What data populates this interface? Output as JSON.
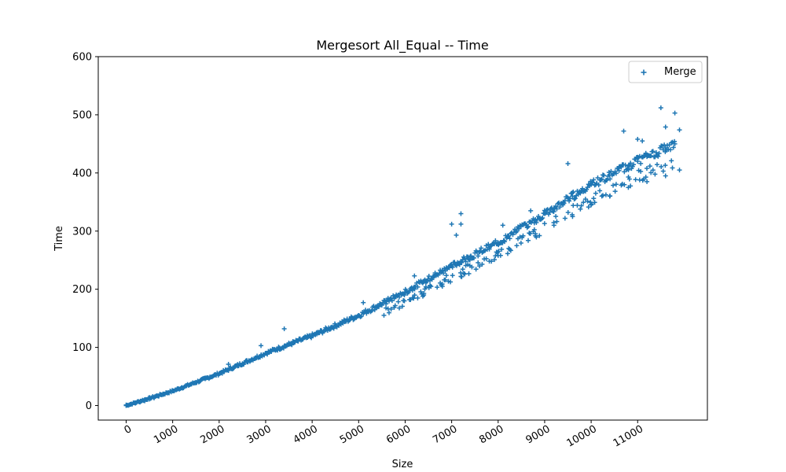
{
  "chart_data": {
    "type": "scatter",
    "title": "Mergesort All_Equal -- Time",
    "xlabel": "Size",
    "ylabel": "Time",
    "xlim": [
      -600,
      12500
    ],
    "ylim": [
      -25,
      600
    ],
    "xticks": [
      0,
      1000,
      2000,
      3000,
      4000,
      5000,
      6000,
      7000,
      8000,
      9000,
      10000,
      11000
    ],
    "yticks": [
      0,
      100,
      200,
      300,
      400,
      500,
      600
    ],
    "x_tick_rotation_deg": 30,
    "grid": false,
    "legend_position": "top-right",
    "series": [
      {
        "name": "Merge",
        "marker": "plus",
        "color": "#1f77b4",
        "trend": {
          "x": [
            0,
            1000,
            2000,
            3000,
            4000,
            5000,
            6000,
            7000,
            8000,
            9000,
            10000,
            11000,
            11800
          ],
          "y": [
            0,
            25,
            55,
            90,
            120,
            155,
            195,
            240,
            280,
            330,
            380,
            420,
            450
          ]
        },
        "points": [
          [
            0,
            1
          ],
          [
            100,
            2
          ],
          [
            200,
            4
          ],
          [
            300,
            6
          ],
          [
            400,
            8
          ],
          [
            500,
            11
          ],
          [
            600,
            13
          ],
          [
            700,
            16
          ],
          [
            800,
            19
          ],
          [
            900,
            22
          ],
          [
            1000,
            25
          ],
          [
            1100,
            28
          ],
          [
            1200,
            31
          ],
          [
            1300,
            34
          ],
          [
            1400,
            37
          ],
          [
            1500,
            40
          ],
          [
            1600,
            43
          ],
          [
            1700,
            46
          ],
          [
            1800,
            49
          ],
          [
            1900,
            52
          ],
          [
            2000,
            55
          ],
          [
            2100,
            58
          ],
          [
            2200,
            61
          ],
          [
            2300,
            65
          ],
          [
            2400,
            68
          ],
          [
            2500,
            72
          ],
          [
            2600,
            75
          ],
          [
            2700,
            79
          ],
          [
            2800,
            82
          ],
          [
            2900,
            86
          ],
          [
            3000,
            90
          ],
          [
            3100,
            93
          ],
          [
            3200,
            96
          ],
          [
            3300,
            99
          ],
          [
            3400,
            102
          ],
          [
            3500,
            105
          ],
          [
            3600,
            108
          ],
          [
            3700,
            111
          ],
          [
            3800,
            114
          ],
          [
            3900,
            117
          ],
          [
            4000,
            120
          ],
          [
            4100,
            123
          ],
          [
            4200,
            127
          ],
          [
            4300,
            130
          ],
          [
            4400,
            134
          ],
          [
            4500,
            137
          ],
          [
            4600,
            141
          ],
          [
            4700,
            144
          ],
          [
            4800,
            148
          ],
          [
            4900,
            151
          ],
          [
            5000,
            155
          ],
          [
            5200,
            163
          ],
          [
            5400,
            171
          ],
          [
            5600,
            179
          ],
          [
            5800,
            187
          ],
          [
            6000,
            195
          ],
          [
            6200,
            204
          ],
          [
            6400,
            213
          ],
          [
            6600,
            222
          ],
          [
            6800,
            231
          ],
          [
            7000,
            240
          ],
          [
            7200,
            248
          ],
          [
            7400,
            256
          ],
          [
            7600,
            264
          ],
          [
            7800,
            272
          ],
          [
            8000,
            280
          ],
          [
            8200,
            290
          ],
          [
            8400,
            300
          ],
          [
            8600,
            310
          ],
          [
            8800,
            320
          ],
          [
            9000,
            330
          ],
          [
            9200,
            340
          ],
          [
            9400,
            350
          ],
          [
            9600,
            360
          ],
          [
            9800,
            370
          ],
          [
            10000,
            380
          ],
          [
            10200,
            388
          ],
          [
            10400,
            396
          ],
          [
            10600,
            404
          ],
          [
            10800,
            412
          ],
          [
            11000,
            420
          ],
          [
            11200,
            428
          ],
          [
            11400,
            435
          ],
          [
            11600,
            443
          ],
          [
            11800,
            450
          ],
          [
            2200,
            71
          ],
          [
            2900,
            103
          ],
          [
            3400,
            132
          ],
          [
            5100,
            177
          ],
          [
            6200,
            223
          ],
          [
            7000,
            312
          ],
          [
            7100,
            293
          ],
          [
            7200,
            330
          ],
          [
            7200,
            312
          ],
          [
            8100,
            310
          ],
          [
            8700,
            335
          ],
          [
            9500,
            416
          ],
          [
            10700,
            472
          ],
          [
            11000,
            458
          ],
          [
            11100,
            455
          ],
          [
            11500,
            512
          ],
          [
            11600,
            479
          ],
          [
            11800,
            503
          ],
          [
            11900,
            474
          ],
          [
            6400,
            190
          ],
          [
            6800,
            205
          ],
          [
            7200,
            222
          ],
          [
            7600,
            240
          ],
          [
            8000,
            258
          ],
          [
            8400,
            275
          ],
          [
            8800,
            292
          ],
          [
            9200,
            310
          ],
          [
            9600,
            325
          ],
          [
            10000,
            345
          ],
          [
            10400,
            360
          ],
          [
            10800,
            375
          ],
          [
            11200,
            385
          ],
          [
            11600,
            395
          ],
          [
            11900,
            405
          ]
        ]
      }
    ]
  }
}
